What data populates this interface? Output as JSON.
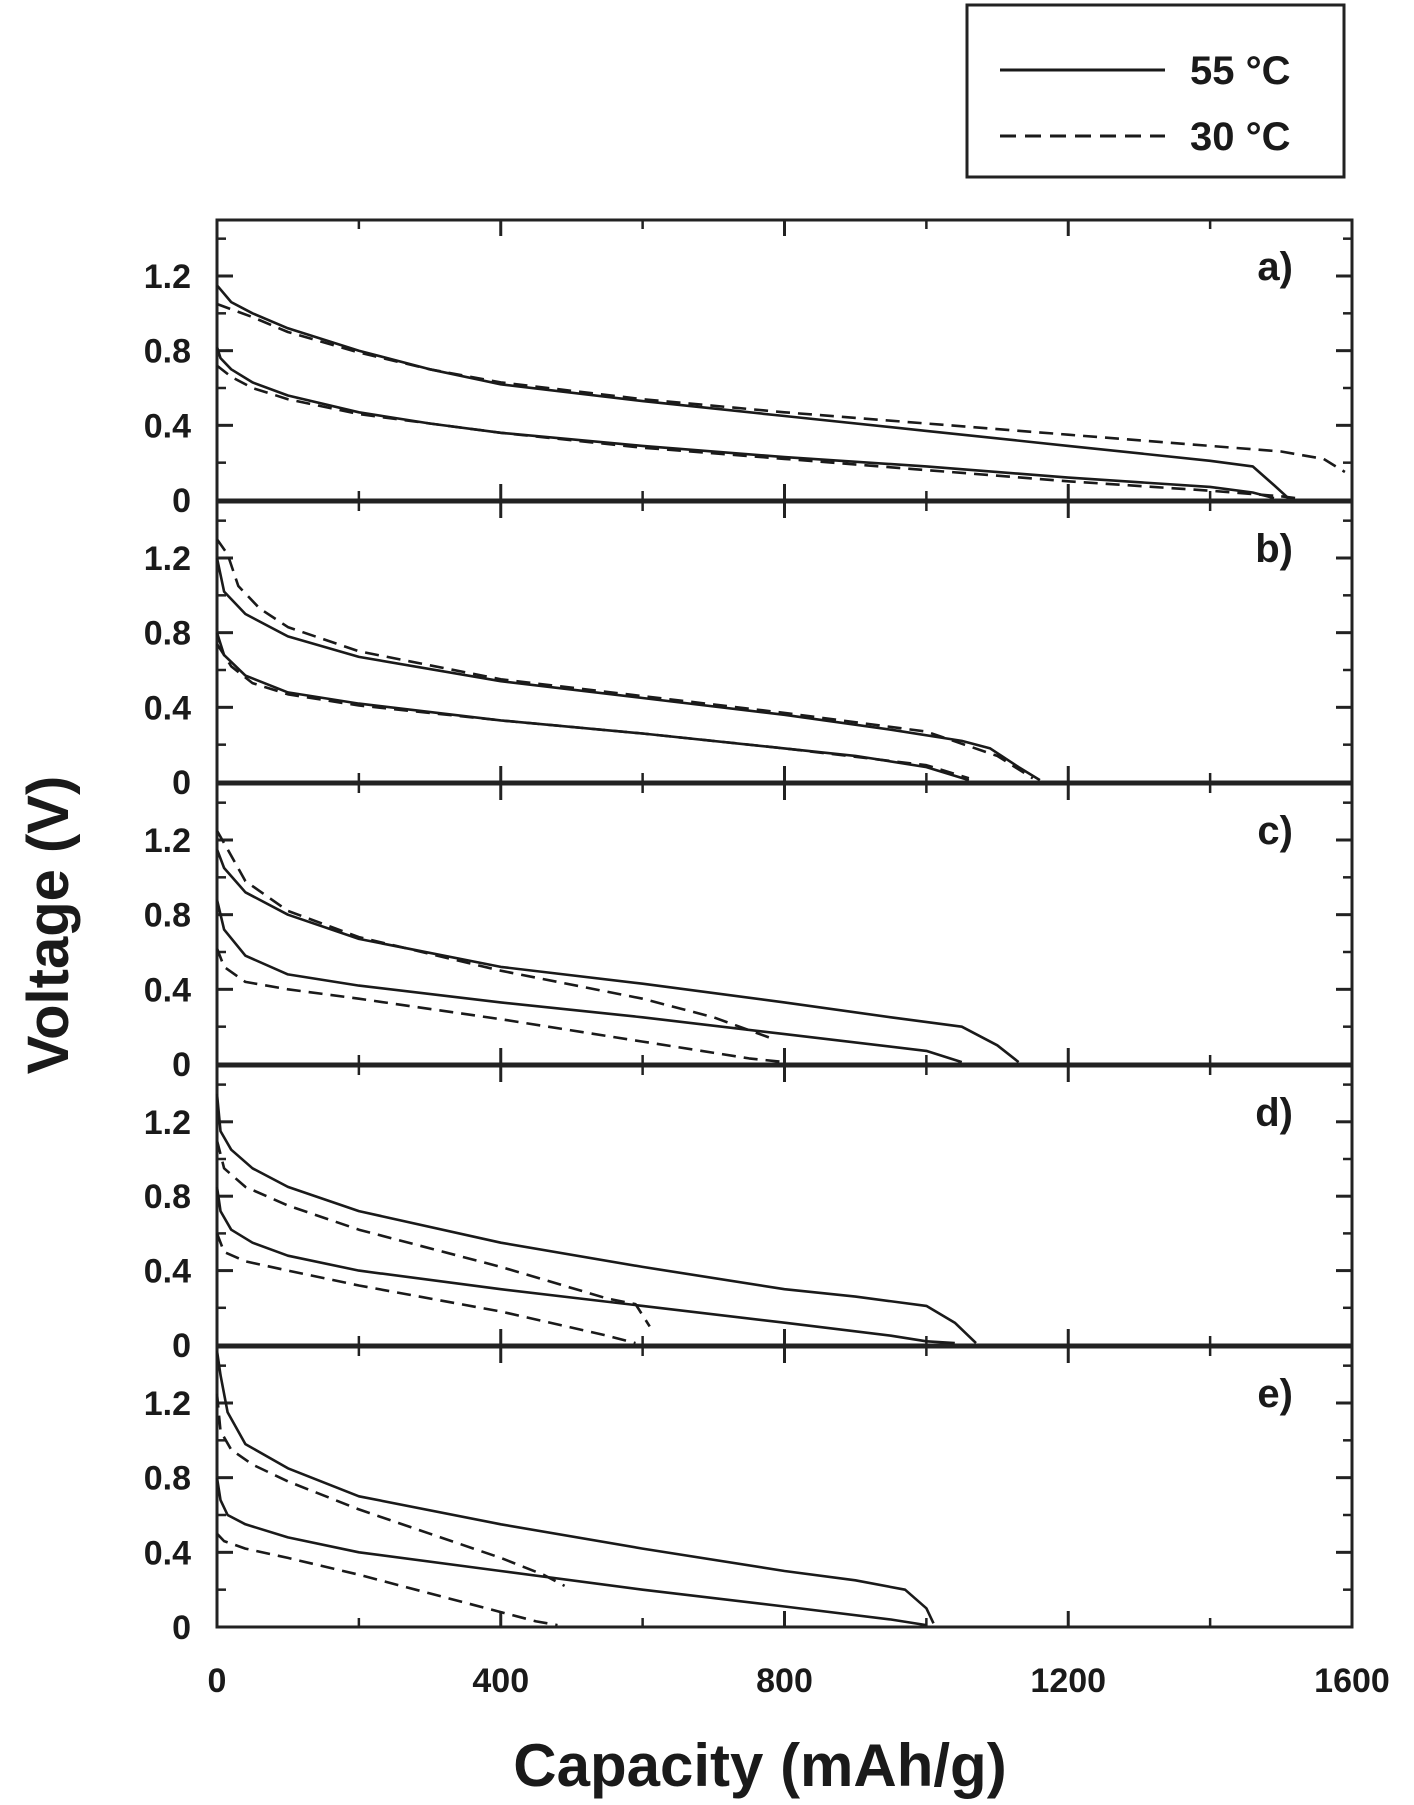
{
  "chart_data": {
    "type": "line",
    "xlabel": "Capacity (mAh/g)",
    "ylabel": "Voltage (V)",
    "xlim": [
      0,
      1600
    ],
    "ylim": [
      0,
      1.5
    ],
    "x_ticks": [
      "0",
      "400",
      "800",
      "1200",
      "1600"
    ],
    "y_ticks": [
      "0",
      "0.4",
      "0.8",
      "1.2"
    ],
    "grid": false,
    "legend_position": "top-right",
    "legend": [
      {
        "name": "55 °C",
        "style": "solid"
      },
      {
        "name": "30 °C",
        "style": "dashed"
      }
    ],
    "panels": [
      {
        "label": "a)",
        "series": [
          {
            "name": "55 °C",
            "style": "solid",
            "segment": "discharge",
            "x": [
              0,
              5,
              20,
              50,
              100,
              200,
              300,
              400,
              600,
              800,
              1000,
              1200,
              1400,
              1460,
              1490
            ],
            "y": [
              0.82,
              0.76,
              0.7,
              0.63,
              0.56,
              0.47,
              0.41,
              0.36,
              0.29,
              0.23,
              0.18,
              0.12,
              0.07,
              0.04,
              0.01
            ]
          },
          {
            "name": "55 °C",
            "style": "solid",
            "segment": "charge",
            "x": [
              0,
              20,
              50,
              100,
              200,
              300,
              400,
              600,
              800,
              1000,
              1200,
              1400,
              1460,
              1490,
              1510
            ],
            "y": [
              1.15,
              1.06,
              1.0,
              0.92,
              0.8,
              0.7,
              0.62,
              0.53,
              0.45,
              0.37,
              0.29,
              0.21,
              0.18,
              0.08,
              0.01
            ]
          },
          {
            "name": "30 °C",
            "style": "dashed",
            "segment": "discharge",
            "x": [
              0,
              20,
              50,
              100,
              200,
              300,
              400,
              600,
              800,
              1000,
              1200,
              1400,
              1500,
              1520
            ],
            "y": [
              0.72,
              0.66,
              0.6,
              0.54,
              0.46,
              0.41,
              0.36,
              0.28,
              0.22,
              0.16,
              0.1,
              0.05,
              0.02,
              0.01
            ]
          },
          {
            "name": "30 °C",
            "style": "dashed",
            "segment": "charge",
            "x": [
              0,
              50,
              100,
              200,
              300,
              400,
              600,
              800,
              1000,
              1200,
              1400,
              1500,
              1560,
              1590
            ],
            "y": [
              1.05,
              0.98,
              0.9,
              0.79,
              0.7,
              0.63,
              0.54,
              0.47,
              0.41,
              0.35,
              0.29,
              0.26,
              0.22,
              0.15
            ]
          }
        ]
      },
      {
        "label": "b)",
        "series": [
          {
            "name": "55 °C",
            "style": "solid",
            "segment": "discharge",
            "x": [
              0,
              10,
              40,
              100,
              200,
              400,
              600,
              800,
              900,
              1000,
              1060
            ],
            "y": [
              0.8,
              0.68,
              0.57,
              0.48,
              0.42,
              0.33,
              0.26,
              0.18,
              0.14,
              0.08,
              0.01
            ]
          },
          {
            "name": "55 °C",
            "style": "solid",
            "segment": "charge",
            "x": [
              0,
              10,
              40,
              100,
              200,
              400,
              600,
              800,
              950,
              1050,
              1090,
              1130,
              1160
            ],
            "y": [
              1.2,
              1.02,
              0.9,
              0.78,
              0.67,
              0.54,
              0.45,
              0.36,
              0.28,
              0.22,
              0.18,
              0.08,
              0.01
            ]
          },
          {
            "name": "30 °C",
            "style": "dashed",
            "segment": "discharge",
            "x": [
              0,
              20,
              50,
              100,
              200,
              400,
              600,
              800,
              1000,
              1060
            ],
            "y": [
              0.74,
              0.62,
              0.53,
              0.47,
              0.41,
              0.33,
              0.26,
              0.18,
              0.09,
              0.02
            ]
          },
          {
            "name": "30 °C",
            "style": "dashed",
            "segment": "charge",
            "x": [
              0,
              15,
              30,
              60,
              100,
              200,
              400,
              600,
              800,
              1000,
              1100,
              1150
            ],
            "y": [
              1.3,
              1.22,
              1.05,
              0.93,
              0.83,
              0.7,
              0.55,
              0.46,
              0.37,
              0.27,
              0.14,
              0.02
            ]
          }
        ]
      },
      {
        "label": "c)",
        "series": [
          {
            "name": "55 °C",
            "style": "solid",
            "segment": "discharge",
            "x": [
              0,
              10,
              40,
              100,
              200,
              400,
              600,
              800,
              1000,
              1050
            ],
            "y": [
              0.88,
              0.72,
              0.58,
              0.48,
              0.42,
              0.33,
              0.25,
              0.16,
              0.07,
              0.01
            ]
          },
          {
            "name": "55 °C",
            "style": "solid",
            "segment": "charge",
            "x": [
              0,
              10,
              40,
              100,
              200,
              400,
              600,
              800,
              950,
              1050,
              1100,
              1130
            ],
            "y": [
              1.15,
              1.05,
              0.92,
              0.8,
              0.67,
              0.52,
              0.43,
              0.33,
              0.25,
              0.2,
              0.1,
              0.01
            ]
          },
          {
            "name": "30 °C",
            "style": "dashed",
            "segment": "discharge",
            "x": [
              0,
              10,
              40,
              100,
              200,
              400,
              600,
              750,
              800
            ],
            "y": [
              0.62,
              0.52,
              0.44,
              0.4,
              0.35,
              0.24,
              0.12,
              0.03,
              0.01
            ]
          },
          {
            "name": "30 °C",
            "style": "dashed",
            "segment": "charge",
            "x": [
              0,
              15,
              40,
              100,
              200,
              400,
              600,
              700,
              780
            ],
            "y": [
              1.25,
              1.15,
              0.98,
              0.82,
              0.68,
              0.5,
              0.35,
              0.25,
              0.14
            ]
          }
        ]
      },
      {
        "label": "d)",
        "series": [
          {
            "name": "55 °C",
            "style": "solid",
            "segment": "discharge",
            "x": [
              0,
              5,
              20,
              50,
              100,
              200,
              400,
              600,
              800,
              950,
              1000,
              1040
            ],
            "y": [
              0.85,
              0.72,
              0.62,
              0.55,
              0.48,
              0.4,
              0.3,
              0.21,
              0.12,
              0.05,
              0.02,
              0.01
            ]
          },
          {
            "name": "55 °C",
            "style": "solid",
            "segment": "charge",
            "x": [
              0,
              5,
              20,
              50,
              100,
              200,
              400,
              600,
              800,
              900,
              1000,
              1040,
              1070
            ],
            "y": [
              1.35,
              1.15,
              1.05,
              0.95,
              0.85,
              0.72,
              0.55,
              0.42,
              0.3,
              0.26,
              0.21,
              0.12,
              0.01
            ]
          },
          {
            "name": "30 °C",
            "style": "dashed",
            "segment": "discharge",
            "x": [
              0,
              10,
              40,
              100,
              200,
              400,
              550,
              590
            ],
            "y": [
              0.6,
              0.5,
              0.45,
              0.4,
              0.32,
              0.18,
              0.05,
              0.01
            ]
          },
          {
            "name": "30 °C",
            "style": "dashed",
            "segment": "charge",
            "x": [
              0,
              10,
              40,
              100,
              200,
              400,
              550,
              590,
              610
            ],
            "y": [
              1.1,
              0.95,
              0.85,
              0.75,
              0.62,
              0.42,
              0.25,
              0.22,
              0.1
            ]
          }
        ]
      },
      {
        "label": "e)",
        "series": [
          {
            "name": "55 °C",
            "style": "solid",
            "segment": "discharge",
            "x": [
              0,
              5,
              15,
              40,
              100,
              200,
              400,
              600,
              800,
              950,
              1000
            ],
            "y": [
              0.8,
              0.68,
              0.6,
              0.55,
              0.48,
              0.4,
              0.3,
              0.2,
              0.11,
              0.04,
              0.01
            ]
          },
          {
            "name": "55 °C",
            "style": "solid",
            "segment": "charge",
            "x": [
              0,
              5,
              15,
              40,
              100,
              200,
              400,
              600,
              800,
              900,
              970,
              1000,
              1010
            ],
            "y": [
              1.48,
              1.35,
              1.15,
              0.98,
              0.85,
              0.7,
              0.55,
              0.42,
              0.3,
              0.25,
              0.2,
              0.1,
              0.02
            ]
          },
          {
            "name": "30 °C",
            "style": "dashed",
            "segment": "discharge",
            "x": [
              0,
              10,
              40,
              100,
              200,
              300,
              400,
              450,
              480
            ],
            "y": [
              0.5,
              0.46,
              0.42,
              0.37,
              0.28,
              0.18,
              0.08,
              0.03,
              0.01
            ]
          },
          {
            "name": "30 °C",
            "style": "dashed",
            "segment": "charge",
            "x": [
              0,
              5,
              20,
              50,
              100,
              200,
              300,
              400,
              460,
              490
            ],
            "y": [
              1.25,
              1.05,
              0.95,
              0.87,
              0.78,
              0.63,
              0.5,
              0.37,
              0.28,
              0.22
            ]
          }
        ]
      }
    ]
  }
}
